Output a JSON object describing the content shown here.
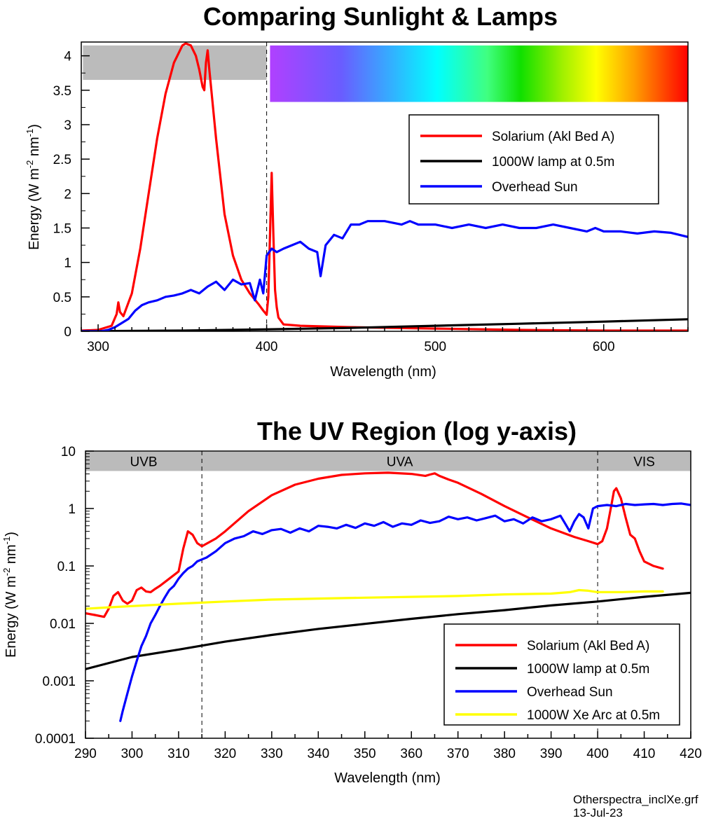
{
  "footer": {
    "filename": "Otherspectra_inclXe.grf",
    "date": "13-Jul-23"
  },
  "colors": {
    "solarium": "#ff0000",
    "lamp": "#000000",
    "sun": "#0000ff",
    "xe": "#ffff00",
    "band": "#bbbbbb"
  },
  "chart_data": [
    {
      "type": "line",
      "title": "Comparing Sunlight & Lamps",
      "xlabel": "Wavelength (nm)",
      "ylabel": "Energy (W m-2 nm-1)",
      "ylabel_parts": [
        "Energy (W m",
        "-2",
        " nm",
        "-1",
        ")"
      ],
      "xlim": [
        290,
        650
      ],
      "ylim": [
        0,
        4.2
      ],
      "xticks": [
        300,
        400,
        500,
        600
      ],
      "yticks": [
        0,
        0.5,
        1,
        1.5,
        2,
        2.5,
        3,
        3.5,
        4
      ],
      "ytick_labels": [
        "0",
        "0.5",
        "1",
        "1.5",
        "2",
        "2.5",
        "3",
        "3.5",
        "4"
      ],
      "grid": false,
      "legend_position": "upper-right",
      "guide_x": [
        400
      ],
      "uv_band": {
        "x": [
          291,
          400
        ],
        "y": [
          3.65,
          4.15
        ]
      },
      "spectrum_bar": {
        "x": [
          402,
          650
        ],
        "y": [
          3.33,
          4.15
        ]
      },
      "series": [
        {
          "name": "Solarium (Akl Bed A)",
          "color": "#ff0000",
          "x": [
            290,
            300,
            308,
            311,
            312,
            313,
            315,
            320,
            325,
            330,
            335,
            340,
            345,
            348,
            350,
            352,
            355,
            358,
            360,
            362,
            363,
            364,
            365,
            366,
            368,
            370,
            375,
            380,
            385,
            390,
            395,
            398,
            400,
            401,
            402,
            403,
            404,
            405,
            406,
            407,
            410,
            415,
            420,
            450,
            500,
            550,
            600,
            650
          ],
          "y": [
            0.01,
            0.02,
            0.08,
            0.25,
            0.42,
            0.28,
            0.22,
            0.55,
            1.2,
            2.0,
            2.8,
            3.45,
            3.9,
            4.05,
            4.15,
            4.18,
            4.15,
            4.0,
            3.8,
            3.55,
            3.5,
            3.9,
            4.08,
            3.8,
            3.3,
            2.8,
            1.7,
            1.1,
            0.75,
            0.55,
            0.4,
            0.3,
            0.24,
            0.5,
            1.4,
            2.3,
            1.4,
            0.6,
            0.35,
            0.2,
            0.1,
            0.09,
            0.08,
            0.06,
            0.04,
            0.02,
            0.01,
            0.01
          ]
        },
        {
          "name": "1000W lamp at 0.5m",
          "color": "#000000",
          "x": [
            290,
            300,
            350,
            400,
            450,
            500,
            550,
            600,
            650
          ],
          "y": [
            0.0016,
            0.003,
            0.01,
            0.028,
            0.05,
            0.08,
            0.11,
            0.14,
            0.175
          ]
        },
        {
          "name": "Overhead Sun",
          "color": "#0000ff",
          "x": [
            290,
            298,
            302,
            306,
            310,
            314,
            318,
            322,
            326,
            330,
            335,
            340,
            345,
            350,
            355,
            360,
            365,
            370,
            375,
            380,
            385,
            390,
            393,
            396,
            398,
            400,
            403,
            406,
            410,
            415,
            420,
            425,
            430,
            432,
            435,
            440,
            445,
            450,
            455,
            460,
            470,
            480,
            485,
            490,
            500,
            510,
            520,
            530,
            540,
            550,
            560,
            570,
            580,
            590,
            595,
            600,
            610,
            620,
            630,
            640,
            650
          ],
          "y": [
            0.0,
            0.0,
            0.002,
            0.02,
            0.06,
            0.12,
            0.18,
            0.3,
            0.38,
            0.42,
            0.45,
            0.5,
            0.52,
            0.55,
            0.6,
            0.55,
            0.65,
            0.72,
            0.6,
            0.75,
            0.68,
            0.7,
            0.45,
            0.75,
            0.55,
            1.1,
            1.2,
            1.15,
            1.2,
            1.25,
            1.3,
            1.2,
            1.15,
            0.8,
            1.25,
            1.4,
            1.35,
            1.55,
            1.55,
            1.6,
            1.6,
            1.55,
            1.6,
            1.55,
            1.55,
            1.5,
            1.55,
            1.5,
            1.55,
            1.5,
            1.5,
            1.55,
            1.5,
            1.45,
            1.5,
            1.45,
            1.45,
            1.42,
            1.45,
            1.43,
            1.37
          ]
        }
      ]
    },
    {
      "type": "line",
      "title": "The UV Region (log y-axis)",
      "xlabel": "Wavelength (nm)",
      "ylabel": "Energy (W m-2 nm-1)",
      "ylabel_parts": [
        "Energy (W m",
        "-2",
        " nm",
        "-1",
        ")"
      ],
      "xlim": [
        290,
        420
      ],
      "ylim": [
        0.0001,
        10
      ],
      "yscale": "log",
      "xticks": [
        290,
        300,
        310,
        320,
        330,
        340,
        350,
        360,
        370,
        380,
        390,
        400,
        410,
        420
      ],
      "yticks": [
        0.0001,
        0.001,
        0.01,
        0.1,
        1,
        10
      ],
      "ytick_labels": [
        "0.0001",
        "0.001",
        "0.01",
        "0.1",
        "1",
        "10"
      ],
      "grid": false,
      "legend_position": "lower-right",
      "guide_x": [
        315,
        400
      ],
      "bands": [
        {
          "label": "UVB",
          "x": [
            290,
            315
          ]
        },
        {
          "label": "UVA",
          "x": [
            315,
            400
          ]
        },
        {
          "label": "VIS",
          "x": [
            400,
            420
          ]
        }
      ],
      "band_y": [
        4.5,
        10
      ],
      "series": [
        {
          "name": "Solarium (Akl Bed A)",
          "color": "#ff0000",
          "x": [
            290,
            292,
            294,
            295,
            296,
            297,
            298,
            299,
            300,
            301,
            302,
            303,
            304,
            305,
            306,
            308,
            310,
            311,
            312,
            313,
            314,
            315,
            318,
            320,
            325,
            330,
            335,
            340,
            345,
            350,
            355,
            360,
            363,
            364,
            365,
            366,
            368,
            370,
            375,
            380,
            385,
            390,
            395,
            398,
            400,
            401,
            402,
            403,
            403.5,
            404,
            405,
            406,
            407,
            408,
            409,
            410,
            412,
            414
          ],
          "y": [
            0.015,
            0.014,
            0.013,
            0.018,
            0.03,
            0.035,
            0.025,
            0.022,
            0.025,
            0.038,
            0.042,
            0.036,
            0.035,
            0.04,
            0.045,
            0.06,
            0.08,
            0.2,
            0.4,
            0.35,
            0.25,
            0.22,
            0.3,
            0.4,
            0.9,
            1.7,
            2.6,
            3.3,
            3.85,
            4.1,
            4.2,
            4.0,
            3.7,
            3.9,
            4.1,
            3.7,
            3.2,
            2.8,
            1.8,
            1.1,
            0.7,
            0.45,
            0.32,
            0.27,
            0.24,
            0.27,
            0.45,
            1.2,
            2.0,
            2.25,
            1.5,
            0.7,
            0.35,
            0.3,
            0.18,
            0.12,
            0.1,
            0.09
          ]
        },
        {
          "name": "1000W lamp at 0.5m",
          "color": "#000000",
          "x": [
            290,
            300,
            310,
            320,
            330,
            340,
            350,
            360,
            370,
            380,
            390,
            400,
            410,
            420
          ],
          "y": [
            0.0016,
            0.0026,
            0.0035,
            0.0048,
            0.0063,
            0.008,
            0.0098,
            0.012,
            0.0145,
            0.017,
            0.0205,
            0.024,
            0.029,
            0.034
          ]
        },
        {
          "name": "Overhead Sun",
          "color": "#0000ff",
          "x": [
            297.5,
            298,
            299,
            300,
            301,
            302,
            303,
            304,
            305,
            306,
            307,
            308,
            309,
            310,
            311,
            312,
            313,
            314,
            315,
            316,
            318,
            320,
            322,
            324,
            326,
            328,
            330,
            332,
            334,
            336,
            338,
            340,
            342,
            344,
            346,
            348,
            350,
            352,
            354,
            356,
            358,
            360,
            362,
            364,
            366,
            368,
            370,
            372,
            374,
            376,
            378,
            380,
            382,
            384,
            386,
            388,
            390,
            392,
            393,
            394,
            395,
            396,
            397,
            398,
            399,
            400,
            402,
            404,
            406,
            408,
            410,
            412,
            414,
            416,
            418,
            420
          ],
          "y": [
            0.0002,
            0.0003,
            0.0006,
            0.0012,
            0.0022,
            0.004,
            0.006,
            0.01,
            0.014,
            0.02,
            0.028,
            0.038,
            0.045,
            0.06,
            0.075,
            0.09,
            0.1,
            0.12,
            0.13,
            0.14,
            0.18,
            0.25,
            0.3,
            0.33,
            0.4,
            0.36,
            0.42,
            0.44,
            0.38,
            0.45,
            0.4,
            0.5,
            0.48,
            0.45,
            0.52,
            0.46,
            0.55,
            0.5,
            0.58,
            0.48,
            0.55,
            0.52,
            0.62,
            0.56,
            0.6,
            0.72,
            0.65,
            0.7,
            0.62,
            0.68,
            0.75,
            0.6,
            0.65,
            0.55,
            0.7,
            0.6,
            0.65,
            0.75,
            0.55,
            0.4,
            0.6,
            0.8,
            0.7,
            0.45,
            1.0,
            1.1,
            1.15,
            1.1,
            1.2,
            1.15,
            1.18,
            1.2,
            1.15,
            1.2,
            1.22,
            1.15
          ]
        },
        {
          "name": "1000W  Xe Arc at 0.5m",
          "color": "#ffff00",
          "x": [
            290,
            295,
            300,
            310,
            320,
            330,
            340,
            350,
            360,
            370,
            380,
            390,
            394,
            396,
            398,
            400,
            405,
            410,
            414
          ],
          "y": [
            0.018,
            0.019,
            0.02,
            0.022,
            0.024,
            0.026,
            0.027,
            0.028,
            0.029,
            0.03,
            0.032,
            0.033,
            0.035,
            0.038,
            0.037,
            0.035,
            0.035,
            0.036,
            0.036
          ]
        }
      ]
    }
  ]
}
